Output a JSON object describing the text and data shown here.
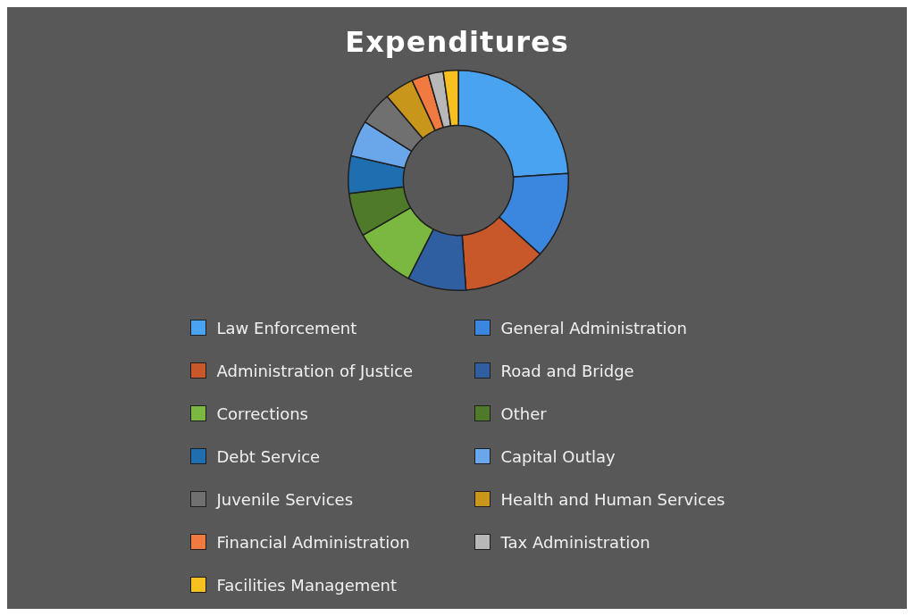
{
  "chart_data": {
    "type": "donut",
    "title": "Expenditures",
    "legend": "bottom",
    "categories": [
      "Law Enforcement",
      "General Administration",
      "Administration of Justice",
      "Road and Bridge",
      "Corrections",
      "Other",
      "Debt Service",
      "Capital Outlay",
      "Juvenile Services",
      "Health and Human Services",
      "Financial Administration",
      "Tax Administration",
      "Facilities Management"
    ],
    "values": [
      24,
      12.7,
      12.2,
      8.6,
      9.2,
      6.4,
      5.5,
      5.3,
      4.9,
      4.3,
      2.5,
      2.2,
      2.2
    ],
    "colors": [
      "#4aa3f0",
      "#3b87e0",
      "#c8582a",
      "#2f5fa0",
      "#7ab840",
      "#4e7a2a",
      "#1f6fb0",
      "#6aa6ea",
      "#707070",
      "#c8961a",
      "#f07a40",
      "#b8b8b8",
      "#f5c020"
    ]
  }
}
